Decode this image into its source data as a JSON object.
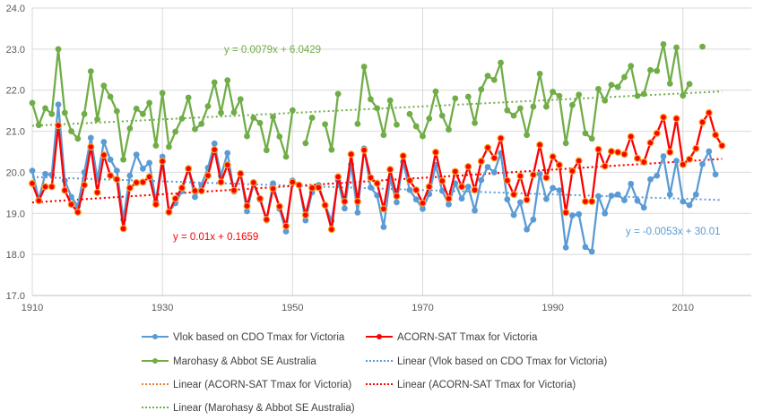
{
  "chart_data": {
    "type": "line",
    "title": "",
    "xlabel": "",
    "ylabel": "",
    "xlim": [
      1910,
      2020.5
    ],
    "ylim": [
      17,
      24
    ],
    "grid": true,
    "legend_placement": "bottom",
    "x_ticks": [
      "1910",
      "1930",
      "1950",
      "1970",
      "1990",
      "2010"
    ],
    "y_ticks": [
      "17.0",
      "18.0",
      "19.0",
      "20.0",
      "21.0",
      "22.0",
      "23.0",
      "24.0"
    ],
    "x_start": 1910,
    "series": [
      {
        "name": "Vlok based on CDO Tmax for Victoria",
        "color": "#5b9bd5",
        "values": [
          20.04,
          19.34,
          19.96,
          19.94,
          21.65,
          19.8,
          19.4,
          19.18,
          20.0,
          20.84,
          19.83,
          20.74,
          20.31,
          20.04,
          18.85,
          19.92,
          20.43,
          20.09,
          20.23,
          19.29,
          20.38,
          19.03,
          19.25,
          19.54,
          20.09,
          19.4,
          19.69,
          20.11,
          20.7,
          19.91,
          20.47,
          19.53,
          19.97,
          19.05,
          19.73,
          19.33,
          18.83,
          19.73,
          19.11,
          18.56,
          19.8,
          19.69,
          18.83,
          19.51,
          19.69,
          19.2,
          18.82,
          19.8,
          19.12,
          20.19,
          19.02,
          20.58,
          19.63,
          19.44,
          18.67,
          19.85,
          19.27,
          20.26,
          19.57,
          19.34,
          19.11,
          19.47,
          20.18,
          19.55,
          19.22,
          19.73,
          19.36,
          19.65,
          19.07,
          19.81,
          20.13,
          20.0,
          20.47,
          19.34,
          18.96,
          19.27,
          18.61,
          18.85,
          19.96,
          19.35,
          19.62,
          19.56,
          18.17,
          18.95,
          18.98,
          18.18,
          18.07,
          19.42,
          19.0,
          19.43,
          19.46,
          19.32,
          19.72,
          19.31,
          19.14,
          19.83,
          19.92,
          20.39,
          19.46,
          20.28,
          19.29,
          19.2,
          19.46,
          20.2,
          20.51,
          19.95,
          null
        ]
      },
      {
        "name": "ACORN-SAT Tmax for Victoria",
        "color": "#ff0000",
        "marker_edge": "#f5a623",
        "values": [
          19.73,
          19.31,
          19.65,
          19.65,
          21.14,
          19.56,
          19.22,
          19.03,
          19.69,
          20.62,
          19.51,
          20.42,
          19.92,
          19.83,
          18.63,
          19.62,
          19.75,
          19.76,
          19.89,
          19.22,
          20.27,
          19.03,
          19.36,
          19.62,
          20.09,
          19.55,
          19.55,
          19.92,
          20.55,
          19.76,
          20.18,
          19.56,
          19.97,
          19.18,
          19.75,
          19.36,
          18.85,
          19.6,
          19.17,
          18.69,
          19.76,
          19.69,
          18.96,
          19.62,
          19.63,
          19.2,
          18.61,
          19.89,
          19.29,
          20.44,
          19.29,
          20.54,
          19.87,
          19.73,
          19.11,
          20.07,
          19.42,
          20.4,
          19.8,
          19.57,
          19.25,
          19.65,
          20.49,
          19.79,
          19.36,
          20.02,
          19.65,
          20.14,
          19.57,
          20.27,
          20.6,
          20.35,
          20.83,
          19.8,
          19.46,
          19.91,
          19.33,
          19.94,
          20.67,
          19.87,
          20.38,
          20.18,
          19.02,
          20.03,
          20.28,
          19.29,
          19.29,
          20.56,
          20.15,
          20.51,
          20.49,
          20.44,
          20.87,
          20.34,
          20.25,
          20.72,
          20.95,
          21.34,
          20.49,
          21.31,
          20.19,
          20.32,
          20.58,
          21.22,
          21.45,
          20.91,
          20.65
        ]
      },
      {
        "name": "Marohasy & Abbot SE Australia",
        "color": "#70ad47",
        "values": [
          21.69,
          21.15,
          21.56,
          21.42,
          23.0,
          21.45,
          21.0,
          20.82,
          21.42,
          22.46,
          21.29,
          22.11,
          21.84,
          21.49,
          20.31,
          21.07,
          21.55,
          21.42,
          21.69,
          20.65,
          21.93,
          20.62,
          20.99,
          21.31,
          21.82,
          21.05,
          21.18,
          21.61,
          22.19,
          21.45,
          22.24,
          21.46,
          21.78,
          20.88,
          21.33,
          21.2,
          20.54,
          21.35,
          20.87,
          20.38,
          21.51,
          null,
          20.71,
          21.33,
          null,
          21.17,
          20.55,
          21.91,
          null,
          null,
          21.18,
          22.57,
          21.78,
          21.56,
          20.91,
          21.75,
          21.16,
          null,
          21.42,
          21.12,
          20.88,
          21.31,
          21.97,
          21.38,
          21.04,
          21.8,
          null,
          21.84,
          21.2,
          22.02,
          22.35,
          22.25,
          22.67,
          21.51,
          21.38,
          21.56,
          20.91,
          21.6,
          22.4,
          21.6,
          21.96,
          21.86,
          20.71,
          21.64,
          21.89,
          20.95,
          20.82,
          22.03,
          21.75,
          22.13,
          22.08,
          22.32,
          22.59,
          21.86,
          21.91,
          22.49,
          22.47,
          23.12,
          22.16,
          23.04,
          21.87,
          22.15,
          null,
          23.06,
          null,
          null,
          null
        ]
      }
    ],
    "trendlines": [
      {
        "name": "Linear  (Vlok based on CDO Tmax for Victoria)",
        "color": "#5b9bd5",
        "slope": -0.0053,
        "intercept": 30.01,
        "range": [
          1910,
          2016
        ],
        "equation": "y = -0.0053x + 30.01"
      },
      {
        "name": "Linear  (ACORN-SAT Tmax for Victoria)",
        "color": "#ed7d31",
        "slope": 0.01,
        "intercept": 0.1659,
        "range": [
          1910,
          2016
        ]
      },
      {
        "name": "Linear  (ACORN-SAT Tmax for Victoria)",
        "color": "#ff0000",
        "slope": 0.01,
        "intercept": 0.1659,
        "range": [
          1910,
          2016
        ],
        "equation": "y = 0.01x + 0.1659"
      },
      {
        "name": "Linear  (Marohasy & Abbot SE Australia)",
        "color": "#70ad47",
        "slope": 0.0079,
        "intercept": 6.0429,
        "range": [
          1910,
          2016
        ],
        "equation": "y = 0.0079x + 6.0429"
      }
    ]
  }
}
